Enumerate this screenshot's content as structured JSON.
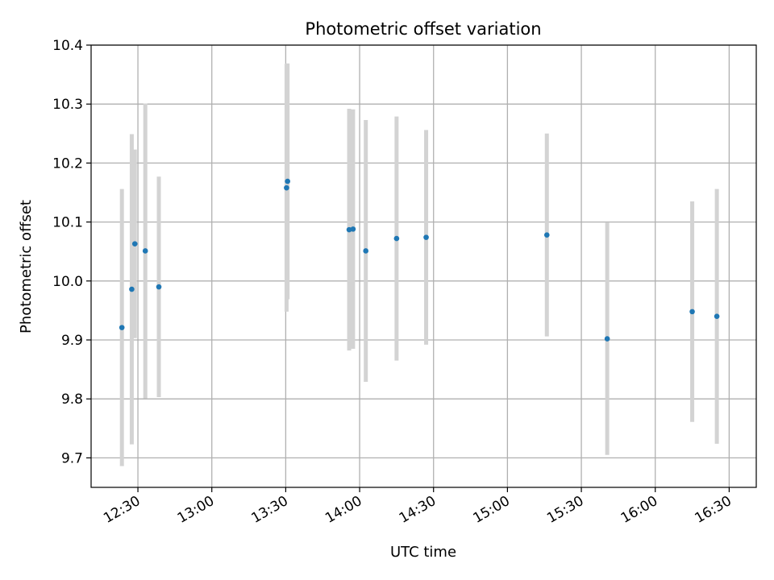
{
  "chart_data": {
    "type": "scatter",
    "title": "Photometric offset variation",
    "xlabel": "UTC time",
    "ylabel": "Photometric offset",
    "x_unit": "UTC time of day (HH:MM)",
    "xlim": [
      "12:11",
      "16:41"
    ],
    "ylim": [
      9.65,
      10.4
    ],
    "yticks": [
      9.7,
      9.8,
      9.9,
      10.0,
      10.1,
      10.2,
      10.3,
      10.4
    ],
    "ytick_labels": [
      "9.7",
      "9.8",
      "9.9",
      "10.0",
      "10.1",
      "10.2",
      "10.3",
      "10.4"
    ],
    "xticks": [
      "12:30",
      "13:00",
      "13:30",
      "14:00",
      "14:30",
      "15:00",
      "15:30",
      "16:00",
      "16:30"
    ],
    "xtick_labels": [
      "12:30",
      "13:00",
      "13:30",
      "14:00",
      "14:30",
      "15:00",
      "15:30",
      "16:00",
      "16:30"
    ],
    "grid": true,
    "point_color": "#1f77b4",
    "errorbar_color": "#d3d3d3",
    "points": [
      {
        "x": "12:23:30",
        "y": 9.921,
        "err": 0.235
      },
      {
        "x": "12:27:30",
        "y": 9.986,
        "err": 0.263
      },
      {
        "x": "12:28:45",
        "y": 10.063,
        "err": 0.16
      },
      {
        "x": "12:33:00",
        "y": 10.051,
        "err": 0.25
      },
      {
        "x": "12:38:30",
        "y": 9.99,
        "err": 0.187
      },
      {
        "x": "13:30:20",
        "y": 10.158,
        "err": 0.21
      },
      {
        "x": "13:30:45",
        "y": 10.169,
        "err": 0.2
      },
      {
        "x": "13:55:45",
        "y": 10.087,
        "err": 0.205
      },
      {
        "x": "13:57:20",
        "y": 10.088,
        "err": 0.203
      },
      {
        "x": "14:02:30",
        "y": 10.051,
        "err": 0.222
      },
      {
        "x": "14:15:00",
        "y": 10.072,
        "err": 0.207
      },
      {
        "x": "14:27:00",
        "y": 10.074,
        "err": 0.182
      },
      {
        "x": "15:16:00",
        "y": 10.078,
        "err": 0.172
      },
      {
        "x": "15:40:30",
        "y": 9.902,
        "err": 0.197
      },
      {
        "x": "16:15:00",
        "y": 9.948,
        "err": 0.187
      },
      {
        "x": "16:25:00",
        "y": 9.94,
        "err": 0.216
      }
    ]
  }
}
